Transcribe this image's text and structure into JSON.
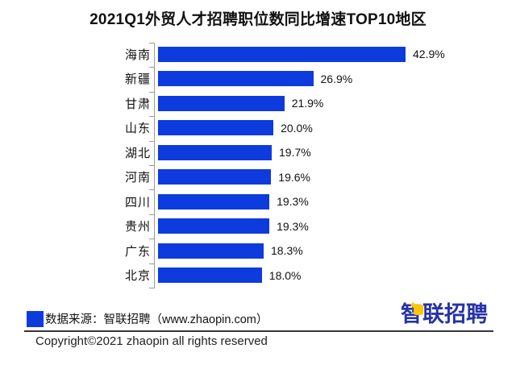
{
  "title": "2021Q1外贸人才招聘职位数同比增速TOP10地区",
  "chart_data": {
    "type": "bar",
    "orientation": "horizontal",
    "title": "2021Q1外贸人才招聘职位数同比增速TOP10地区",
    "categories": [
      "海南",
      "新疆",
      "甘肃",
      "山东",
      "湖北",
      "河南",
      "四川",
      "贵州",
      "广东",
      "北京"
    ],
    "values": [
      42.9,
      26.9,
      21.9,
      20.0,
      19.7,
      19.6,
      19.3,
      19.3,
      18.3,
      18.0
    ],
    "value_labels": [
      "42.9%",
      "26.9%",
      "21.9%",
      "20.0%",
      "19.7%",
      "19.6%",
      "19.3%",
      "19.3%",
      "18.3%",
      "18.0%"
    ],
    "xlabel": "",
    "ylabel": "",
    "xlim": [
      0,
      45
    ],
    "grid": false,
    "legend_position": "none",
    "sort_order": "descending",
    "bar_color": "#0e3bdd",
    "axis_color": "#9a9a9a"
  },
  "footer": {
    "source_label": "数据来源：智联招聘（www.zhaopin.com）",
    "logo_text": "智联招聘",
    "copyright": "Copyright©2021 zhaopin all rights reserved"
  },
  "colors": {
    "bar_blue": "#0e3bdd",
    "logo_blue": "#2733a6",
    "logo_yellow": "#ffc600",
    "background": "#ffffff"
  }
}
